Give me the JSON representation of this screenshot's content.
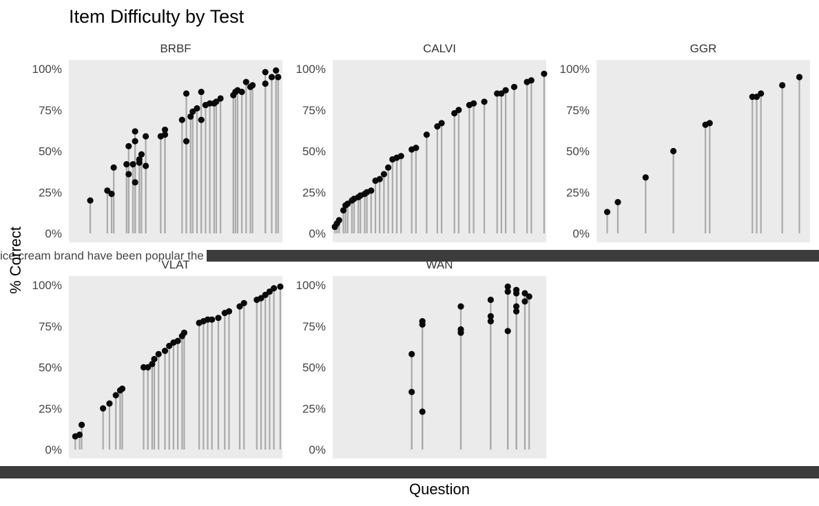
{
  "chart_data": {
    "type": "lollipop",
    "title": "Item Difficulty by Test",
    "xlabel": "Question",
    "ylabel": "% Correct",
    "ylim": [
      0,
      1
    ],
    "y_ticks": [
      "0%",
      "25%",
      "50%",
      "75%",
      "100%"
    ],
    "grid": false,
    "legend": "none",
    "colors": {
      "stem": "#a9a9a9",
      "point": "#0a0a0a",
      "panel": "#ebebeb"
    },
    "facet_row1_xtick_text": "ice cream brand have been popular the most?",
    "panels": [
      {
        "name": "BRBF",
        "points": [
          {
            "x": 0.1,
            "y": 0.2
          },
          {
            "x": 0.18,
            "y": 0.26
          },
          {
            "x": 0.2,
            "y": 0.24
          },
          {
            "x": 0.21,
            "y": 0.4
          },
          {
            "x": 0.27,
            "y": 0.42
          },
          {
            "x": 0.28,
            "y": 0.53
          },
          {
            "x": 0.28,
            "y": 0.36
          },
          {
            "x": 0.3,
            "y": 0.42
          },
          {
            "x": 0.31,
            "y": 0.56
          },
          {
            "x": 0.31,
            "y": 0.62
          },
          {
            "x": 0.31,
            "y": 0.31
          },
          {
            "x": 0.33,
            "y": 0.45
          },
          {
            "x": 0.33,
            "y": 0.43
          },
          {
            "x": 0.34,
            "y": 0.48
          },
          {
            "x": 0.36,
            "y": 0.41
          },
          {
            "x": 0.36,
            "y": 0.59
          },
          {
            "x": 0.43,
            "y": 0.59
          },
          {
            "x": 0.45,
            "y": 0.63
          },
          {
            "x": 0.45,
            "y": 0.6
          },
          {
            "x": 0.53,
            "y": 0.69
          },
          {
            "x": 0.55,
            "y": 0.56
          },
          {
            "x": 0.55,
            "y": 0.85
          },
          {
            "x": 0.57,
            "y": 0.71
          },
          {
            "x": 0.58,
            "y": 0.74
          },
          {
            "x": 0.6,
            "y": 0.76
          },
          {
            "x": 0.62,
            "y": 0.69
          },
          {
            "x": 0.62,
            "y": 0.86
          },
          {
            "x": 0.64,
            "y": 0.78
          },
          {
            "x": 0.66,
            "y": 0.79
          },
          {
            "x": 0.68,
            "y": 0.79
          },
          {
            "x": 0.69,
            "y": 0.8
          },
          {
            "x": 0.71,
            "y": 0.82
          },
          {
            "x": 0.77,
            "y": 0.84
          },
          {
            "x": 0.78,
            "y": 0.86
          },
          {
            "x": 0.79,
            "y": 0.87
          },
          {
            "x": 0.81,
            "y": 0.86
          },
          {
            "x": 0.83,
            "y": 0.92
          },
          {
            "x": 0.85,
            "y": 0.89
          },
          {
            "x": 0.86,
            "y": 0.9
          },
          {
            "x": 0.92,
            "y": 0.91
          },
          {
            "x": 0.92,
            "y": 0.98
          },
          {
            "x": 0.95,
            "y": 0.95
          },
          {
            "x": 0.97,
            "y": 0.99
          },
          {
            "x": 0.98,
            "y": 0.95
          }
        ]
      },
      {
        "name": "CALVI",
        "points": [
          {
            "x": 0.01,
            "y": 0.04
          },
          {
            "x": 0.02,
            "y": 0.06
          },
          {
            "x": 0.03,
            "y": 0.08
          },
          {
            "x": 0.05,
            "y": 0.14
          },
          {
            "x": 0.06,
            "y": 0.17
          },
          {
            "x": 0.07,
            "y": 0.18
          },
          {
            "x": 0.09,
            "y": 0.2
          },
          {
            "x": 0.1,
            "y": 0.21
          },
          {
            "x": 0.12,
            "y": 0.22
          },
          {
            "x": 0.13,
            "y": 0.23
          },
          {
            "x": 0.15,
            "y": 0.24
          },
          {
            "x": 0.16,
            "y": 0.25
          },
          {
            "x": 0.18,
            "y": 0.26
          },
          {
            "x": 0.2,
            "y": 0.32
          },
          {
            "x": 0.22,
            "y": 0.33
          },
          {
            "x": 0.24,
            "y": 0.36
          },
          {
            "x": 0.26,
            "y": 0.4
          },
          {
            "x": 0.28,
            "y": 0.45
          },
          {
            "x": 0.3,
            "y": 0.46
          },
          {
            "x": 0.32,
            "y": 0.47
          },
          {
            "x": 0.37,
            "y": 0.51
          },
          {
            "x": 0.39,
            "y": 0.52
          },
          {
            "x": 0.44,
            "y": 0.6
          },
          {
            "x": 0.49,
            "y": 0.65
          },
          {
            "x": 0.51,
            "y": 0.67
          },
          {
            "x": 0.57,
            "y": 0.73
          },
          {
            "x": 0.59,
            "y": 0.75
          },
          {
            "x": 0.64,
            "y": 0.78
          },
          {
            "x": 0.66,
            "y": 0.79
          },
          {
            "x": 0.71,
            "y": 0.8
          },
          {
            "x": 0.77,
            "y": 0.85
          },
          {
            "x": 0.79,
            "y": 0.85
          },
          {
            "x": 0.81,
            "y": 0.87
          },
          {
            "x": 0.85,
            "y": 0.89
          },
          {
            "x": 0.91,
            "y": 0.92
          },
          {
            "x": 0.93,
            "y": 0.93
          },
          {
            "x": 0.99,
            "y": 0.97
          }
        ]
      },
      {
        "name": "GGR",
        "points": [
          {
            "x": 0.05,
            "y": 0.13
          },
          {
            "x": 0.1,
            "y": 0.19
          },
          {
            "x": 0.23,
            "y": 0.34
          },
          {
            "x": 0.36,
            "y": 0.5
          },
          {
            "x": 0.51,
            "y": 0.66
          },
          {
            "x": 0.53,
            "y": 0.67
          },
          {
            "x": 0.73,
            "y": 0.83
          },
          {
            "x": 0.75,
            "y": 0.83
          },
          {
            "x": 0.77,
            "y": 0.85
          },
          {
            "x": 0.87,
            "y": 0.9
          },
          {
            "x": 0.95,
            "y": 0.95
          }
        ]
      },
      {
        "name": "VLAT",
        "points": [
          {
            "x": 0.03,
            "y": 0.08
          },
          {
            "x": 0.05,
            "y": 0.09
          },
          {
            "x": 0.06,
            "y": 0.15
          },
          {
            "x": 0.16,
            "y": 0.25
          },
          {
            "x": 0.19,
            "y": 0.28
          },
          {
            "x": 0.22,
            "y": 0.33
          },
          {
            "x": 0.24,
            "y": 0.36
          },
          {
            "x": 0.25,
            "y": 0.37
          },
          {
            "x": 0.35,
            "y": 0.5
          },
          {
            "x": 0.37,
            "y": 0.5
          },
          {
            "x": 0.39,
            "y": 0.52
          },
          {
            "x": 0.4,
            "y": 0.55
          },
          {
            "x": 0.42,
            "y": 0.58
          },
          {
            "x": 0.45,
            "y": 0.6
          },
          {
            "x": 0.47,
            "y": 0.63
          },
          {
            "x": 0.49,
            "y": 0.65
          },
          {
            "x": 0.51,
            "y": 0.66
          },
          {
            "x": 0.53,
            "y": 0.69
          },
          {
            "x": 0.54,
            "y": 0.71
          },
          {
            "x": 0.61,
            "y": 0.77
          },
          {
            "x": 0.63,
            "y": 0.78
          },
          {
            "x": 0.65,
            "y": 0.79
          },
          {
            "x": 0.67,
            "y": 0.79
          },
          {
            "x": 0.7,
            "y": 0.8
          },
          {
            "x": 0.73,
            "y": 0.83
          },
          {
            "x": 0.75,
            "y": 0.84
          },
          {
            "x": 0.8,
            "y": 0.87
          },
          {
            "x": 0.82,
            "y": 0.89
          },
          {
            "x": 0.88,
            "y": 0.91
          },
          {
            "x": 0.9,
            "y": 0.92
          },
          {
            "x": 0.92,
            "y": 0.94
          },
          {
            "x": 0.94,
            "y": 0.96
          },
          {
            "x": 0.96,
            "y": 0.98
          },
          {
            "x": 0.99,
            "y": 0.99
          }
        ]
      },
      {
        "name": "WAN",
        "points": [
          {
            "x": 0.37,
            "y": 0.58
          },
          {
            "x": 0.37,
            "y": 0.35
          },
          {
            "x": 0.42,
            "y": 0.78
          },
          {
            "x": 0.42,
            "y": 0.76
          },
          {
            "x": 0.42,
            "y": 0.23
          },
          {
            "x": 0.6,
            "y": 0.87
          },
          {
            "x": 0.6,
            "y": 0.73
          },
          {
            "x": 0.6,
            "y": 0.71
          },
          {
            "x": 0.74,
            "y": 0.91
          },
          {
            "x": 0.74,
            "y": 0.81
          },
          {
            "x": 0.74,
            "y": 0.78
          },
          {
            "x": 0.82,
            "y": 0.99
          },
          {
            "x": 0.82,
            "y": 0.96
          },
          {
            "x": 0.82,
            "y": 0.72
          },
          {
            "x": 0.86,
            "y": 0.97
          },
          {
            "x": 0.86,
            "y": 0.95
          },
          {
            "x": 0.86,
            "y": 0.87
          },
          {
            "x": 0.86,
            "y": 0.84
          },
          {
            "x": 0.9,
            "y": 0.95
          },
          {
            "x": 0.9,
            "y": 0.9
          },
          {
            "x": 0.92,
            "y": 0.93
          }
        ]
      }
    ]
  }
}
